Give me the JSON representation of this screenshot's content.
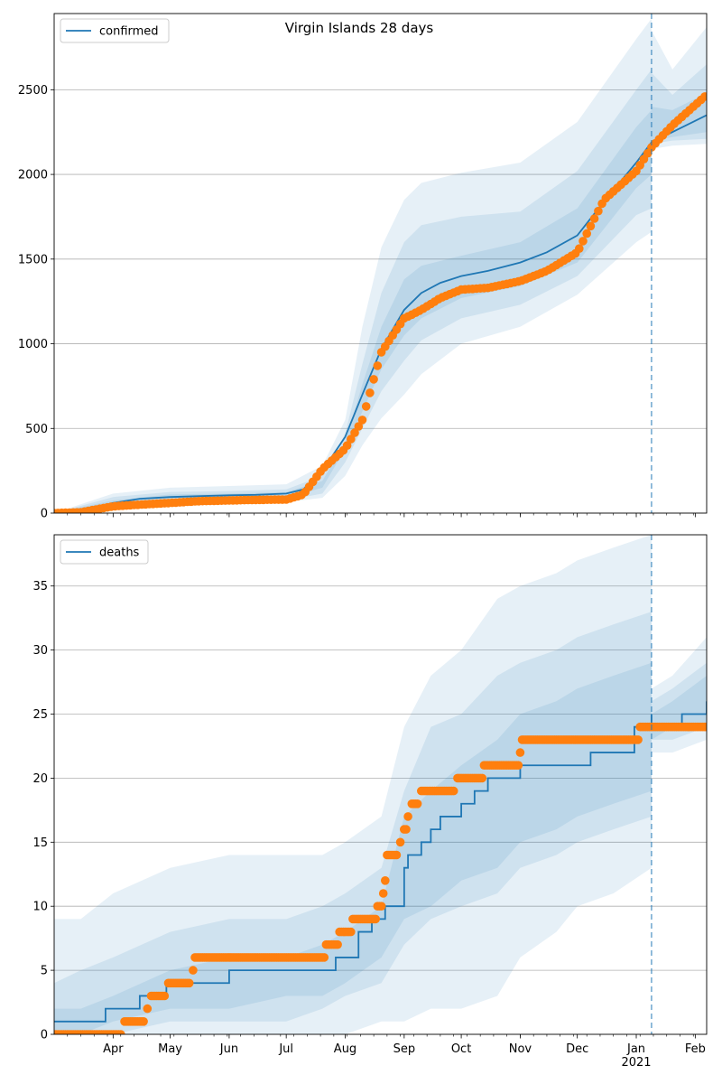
{
  "figure": {
    "title": "Virgin Islands 28 days"
  },
  "colors": {
    "model": "#1f77b4",
    "observed": "#ff7f0e",
    "band": "#1f77b4",
    "grid": "#b0b0b0"
  },
  "chart_data": [
    {
      "type": "line",
      "legend": "confirmed",
      "legend_position": "top-left",
      "grid": "horizontal",
      "ylim": [
        0,
        2950
      ],
      "yticks": [
        0,
        500,
        1000,
        1500,
        2000,
        2500
      ],
      "xlim": [
        "2020-03-01",
        "2021-02-07"
      ],
      "forecast_start": "2021-01-09",
      "series": [
        {
          "name": "confirmed",
          "kind": "model",
          "x": [
            "2020-03-01",
            "2020-03-15",
            "2020-04-01",
            "2020-04-15",
            "2020-05-01",
            "2020-05-15",
            "2020-06-01",
            "2020-06-15",
            "2020-07-01",
            "2020-07-10",
            "2020-07-20",
            "2020-08-01",
            "2020-08-10",
            "2020-08-20",
            "2020-09-01",
            "2020-09-10",
            "2020-09-20",
            "2020-10-01",
            "2020-10-15",
            "2020-11-01",
            "2020-11-15",
            "2020-12-01",
            "2020-12-15",
            "2021-01-01",
            "2021-01-09",
            "2021-01-20",
            "2021-02-07"
          ],
          "y": [
            0,
            10,
            60,
            85,
            95,
            100,
            105,
            108,
            115,
            140,
            250,
            450,
            700,
            970,
            1200,
            1300,
            1360,
            1400,
            1430,
            1480,
            1540,
            1640,
            1840,
            2070,
            2190,
            2250,
            2350
          ]
        },
        {
          "name": "observed",
          "kind": "observed",
          "x": [
            "2020-03-01",
            "2020-03-15",
            "2020-04-01",
            "2020-04-15",
            "2020-05-01",
            "2020-05-15",
            "2020-06-01",
            "2020-06-15",
            "2020-07-01",
            "2020-07-10",
            "2020-07-20",
            "2020-08-01",
            "2020-08-10",
            "2020-08-20",
            "2020-09-01",
            "2020-09-10",
            "2020-09-20",
            "2020-10-01",
            "2020-10-15",
            "2020-11-01",
            "2020-11-15",
            "2020-12-01",
            "2020-12-15",
            "2021-01-01",
            "2021-01-09",
            "2021-01-20",
            "2021-02-07"
          ],
          "y": [
            0,
            5,
            40,
            50,
            60,
            70,
            75,
            78,
            80,
            110,
            260,
            380,
            550,
            950,
            1150,
            1200,
            1270,
            1320,
            1330,
            1370,
            1430,
            1540,
            1850,
            2020,
            2160,
            2290,
            2470
          ]
        }
      ],
      "bands": [
        {
          "x": [
            "2020-03-01",
            "2020-04-01",
            "2020-05-01",
            "2020-06-01",
            "2020-07-01",
            "2020-07-20",
            "2020-08-01",
            "2020-08-10",
            "2020-08-20",
            "2020-09-01",
            "2020-09-10",
            "2020-10-01",
            "2020-11-01",
            "2020-12-01",
            "2021-01-01",
            "2021-01-09"
          ],
          "low": [
            0,
            30,
            55,
            60,
            65,
            90,
            220,
            400,
            560,
            700,
            820,
            1000,
            1100,
            1290,
            1600,
            1660
          ],
          "high": [
            0,
            115,
            150,
            160,
            170,
            280,
            550,
            1100,
            1570,
            1850,
            1950,
            2010,
            2070,
            2310,
            2800,
            2920
          ]
        },
        {
          "x": [
            "2020-03-01",
            "2020-04-01",
            "2020-05-01",
            "2020-06-01",
            "2020-07-01",
            "2020-07-20",
            "2020-08-01",
            "2020-08-10",
            "2020-08-20",
            "2020-09-01",
            "2020-09-10",
            "2020-10-01",
            "2020-11-01",
            "2020-12-01",
            "2021-01-01",
            "2021-01-09"
          ],
          "low": [
            0,
            40,
            65,
            70,
            75,
            115,
            300,
            500,
            720,
            900,
            1020,
            1150,
            1230,
            1400,
            1760,
            1800
          ],
          "high": [
            0,
            95,
            125,
            130,
            140,
            220,
            470,
            880,
            1300,
            1600,
            1700,
            1750,
            1780,
            2020,
            2500,
            2620
          ]
        },
        {
          "x": [
            "2020-03-01",
            "2020-04-01",
            "2020-05-01",
            "2020-06-01",
            "2020-07-01",
            "2020-07-20",
            "2020-08-01",
            "2020-08-10",
            "2020-08-20",
            "2020-09-01",
            "2020-09-10",
            "2020-10-01",
            "2020-11-01",
            "2020-12-01",
            "2021-01-01",
            "2021-01-09"
          ],
          "low": [
            0,
            50,
            75,
            82,
            90,
            150,
            380,
            600,
            850,
            1050,
            1150,
            1270,
            1340,
            1480,
            1920,
            2000
          ],
          "high": [
            0,
            75,
            110,
            115,
            125,
            190,
            420,
            760,
            1100,
            1380,
            1460,
            1520,
            1600,
            1800,
            2280,
            2380
          ]
        },
        {
          "x": [
            "2021-01-09",
            "2021-01-20",
            "2021-02-07"
          ],
          "low": [
            2150,
            2170,
            2180
          ],
          "high": [
            2850,
            2620,
            2870
          ]
        },
        {
          "x": [
            "2021-01-09",
            "2021-01-20",
            "2021-02-07"
          ],
          "low": [
            2180,
            2200,
            2210
          ],
          "high": [
            2600,
            2470,
            2650
          ]
        },
        {
          "x": [
            "2021-01-09",
            "2021-01-20",
            "2021-02-07"
          ],
          "low": [
            2200,
            2220,
            2250
          ],
          "high": [
            2400,
            2380,
            2480
          ]
        }
      ]
    },
    {
      "type": "line",
      "legend": "deaths",
      "legend_position": "top-left",
      "grid": "horizontal",
      "ylim": [
        0,
        39
      ],
      "yticks": [
        0,
        5,
        10,
        15,
        20,
        25,
        30,
        35
      ],
      "xlim": [
        "2020-03-01",
        "2021-02-07"
      ],
      "forecast_start": "2021-01-09",
      "xticks": [
        {
          "date": "2020-04-01",
          "label": "Apr"
        },
        {
          "date": "2020-05-01",
          "label": "May"
        },
        {
          "date": "2020-06-01",
          "label": "Jun"
        },
        {
          "date": "2020-07-01",
          "label": "Jul"
        },
        {
          "date": "2020-08-01",
          "label": "Aug"
        },
        {
          "date": "2020-09-01",
          "label": "Sep"
        },
        {
          "date": "2020-10-01",
          "label": "Oct"
        },
        {
          "date": "2020-11-01",
          "label": "Nov"
        },
        {
          "date": "2020-12-01",
          "label": "Dec"
        },
        {
          "date": "2021-01-01",
          "label": "Jan"
        },
        {
          "date": "2021-02-01",
          "label": "Feb"
        }
      ],
      "year_label": "2021",
      "series": [
        {
          "name": "deaths",
          "kind": "model",
          "x": [
            "2020-03-01",
            "2020-03-28",
            "2020-04-15",
            "2020-04-29",
            "2020-06-01",
            "2020-07-16",
            "2020-07-27",
            "2020-08-08",
            "2020-08-15",
            "2020-08-22",
            "2020-09-01",
            "2020-09-03",
            "2020-09-10",
            "2020-09-15",
            "2020-09-20",
            "2020-10-01",
            "2020-10-08",
            "2020-10-15",
            "2020-11-01",
            "2020-11-17",
            "2020-12-08",
            "2020-12-31",
            "2021-01-09",
            "2021-01-09",
            "2021-01-25",
            "2021-02-07"
          ],
          "y": [
            1,
            2,
            3,
            4,
            5,
            5,
            6,
            8,
            9,
            10,
            13,
            14,
            15,
            16,
            17,
            18,
            19,
            20,
            21,
            21,
            22,
            24,
            25,
            24,
            25,
            26
          ]
        },
        {
          "name": "observed",
          "kind": "observed",
          "steps": [
            {
              "from": "2020-03-01",
              "to": "2020-04-05",
              "y": 0
            },
            {
              "from": "2020-04-07",
              "to": "2020-04-17",
              "y": 1
            },
            {
              "from": "2020-04-19",
              "to": "2020-04-19",
              "y": 2
            },
            {
              "from": "2020-04-21",
              "to": "2020-04-28",
              "y": 3
            },
            {
              "from": "2020-04-30",
              "to": "2020-05-11",
              "y": 4
            },
            {
              "from": "2020-05-13",
              "to": "2020-05-13",
              "y": 5
            },
            {
              "from": "2020-05-14",
              "to": "2020-07-21",
              "y": 6
            },
            {
              "from": "2020-07-22",
              "to": "2020-07-28",
              "y": 7
            },
            {
              "from": "2020-07-29",
              "to": "2020-08-04",
              "y": 8
            },
            {
              "from": "2020-08-05",
              "to": "2020-08-17",
              "y": 9
            },
            {
              "from": "2020-08-18",
              "to": "2020-08-20",
              "y": 10
            },
            {
              "from": "2020-08-21",
              "to": "2020-08-21",
              "y": 11
            },
            {
              "from": "2020-08-22",
              "to": "2020-08-22",
              "y": 12
            },
            {
              "from": "2020-08-23",
              "to": "2020-08-28",
              "y": 14
            },
            {
              "from": "2020-08-30",
              "to": "2020-08-30",
              "y": 15
            },
            {
              "from": "2020-09-01",
              "to": "2020-09-02",
              "y": 16
            },
            {
              "from": "2020-09-03",
              "to": "2020-09-03",
              "y": 17
            },
            {
              "from": "2020-09-05",
              "to": "2020-09-08",
              "y": 18
            },
            {
              "from": "2020-09-10",
              "to": "2020-09-27",
              "y": 19
            },
            {
              "from": "2020-09-29",
              "to": "2020-10-12",
              "y": 20
            },
            {
              "from": "2020-10-13",
              "to": "2020-10-31",
              "y": 21
            },
            {
              "from": "2020-11-01",
              "to": "2020-11-01",
              "y": 22
            },
            {
              "from": "2020-11-02",
              "to": "2021-01-02",
              "y": 23
            },
            {
              "from": "2021-01-03",
              "to": "2021-02-07",
              "y": 24
            }
          ]
        }
      ],
      "bands": [
        {
          "x": [
            "2020-03-01",
            "2020-03-15",
            "2020-04-01",
            "2020-05-01",
            "2020-06-01",
            "2020-06-20",
            "2020-07-01",
            "2020-07-20",
            "2020-08-01",
            "2020-08-20",
            "2020-09-01",
            "2020-09-15",
            "2020-10-01",
            "2020-10-20",
            "2020-11-01",
            "2020-11-20",
            "2020-12-01",
            "2020-12-20",
            "2021-01-09"
          ],
          "low": [
            0,
            0,
            0,
            0,
            0,
            0,
            0,
            0,
            0,
            1,
            1,
            2,
            2,
            3,
            6,
            8,
            10,
            11,
            13
          ],
          "high": [
            9,
            9,
            11,
            13,
            14,
            14,
            14,
            14,
            15,
            17,
            24,
            28,
            30,
            34,
            35,
            36,
            37,
            38,
            39
          ]
        },
        {
          "x": [
            "2020-03-01",
            "2020-03-15",
            "2020-04-01",
            "2020-05-01",
            "2020-06-01",
            "2020-07-01",
            "2020-07-20",
            "2020-08-01",
            "2020-08-20",
            "2020-09-01",
            "2020-09-15",
            "2020-10-01",
            "2020-10-20",
            "2020-11-01",
            "2020-11-20",
            "2020-12-01",
            "2020-12-20",
            "2021-01-09"
          ],
          "low": [
            0,
            0,
            0,
            1,
            1,
            1,
            2,
            3,
            4,
            7,
            9,
            10,
            11,
            13,
            14,
            15,
            16,
            17
          ],
          "high": [
            4,
            5,
            6,
            8,
            9,
            9,
            10,
            11,
            13,
            19,
            24,
            25,
            28,
            29,
            30,
            31,
            32,
            33
          ]
        },
        {
          "x": [
            "2020-03-01",
            "2020-03-15",
            "2020-04-01",
            "2020-05-01",
            "2020-06-01",
            "2020-07-01",
            "2020-07-20",
            "2020-08-01",
            "2020-08-20",
            "2020-09-01",
            "2020-09-15",
            "2020-10-01",
            "2020-10-20",
            "2020-11-01",
            "2020-11-20",
            "2020-12-01",
            "2020-12-20",
            "2021-01-09"
          ],
          "low": [
            0,
            0,
            1,
            2,
            2,
            3,
            3,
            4,
            6,
            9,
            10,
            12,
            13,
            15,
            16,
            17,
            18,
            19
          ],
          "high": [
            2,
            2,
            3,
            5,
            6,
            6,
            7,
            8,
            10,
            17,
            19,
            21,
            23,
            25,
            26,
            27,
            28,
            29
          ]
        },
        {
          "x": [
            "2021-01-09",
            "2021-01-20",
            "2021-02-07"
          ],
          "low": [
            22,
            22,
            23
          ],
          "high": [
            27,
            28,
            31
          ]
        },
        {
          "x": [
            "2021-01-09",
            "2021-01-20",
            "2021-02-07"
          ],
          "low": [
            23,
            23,
            24
          ],
          "high": [
            26,
            27,
            29
          ]
        },
        {
          "x": [
            "2021-01-09",
            "2021-01-20",
            "2021-02-07"
          ],
          "low": [
            23,
            24,
            24
          ],
          "high": [
            25,
            26,
            28
          ]
        }
      ]
    }
  ]
}
